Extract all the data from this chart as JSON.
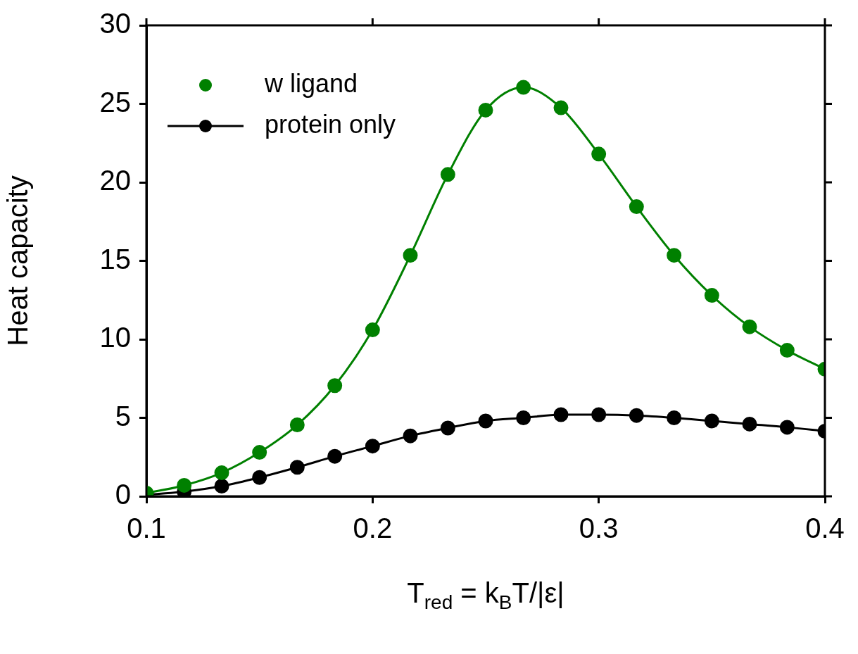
{
  "chart_data": {
    "type": "line",
    "xlabel": "T$_{red}$ = k$_{B}$T/|ε|",
    "ylabel": "Heat capacity",
    "x": [
      0.1,
      0.1167,
      0.1333,
      0.15,
      0.1667,
      0.1833,
      0.2,
      0.2167,
      0.2333,
      0.25,
      0.2667,
      0.2833,
      0.3,
      0.3167,
      0.3333,
      0.35,
      0.3667,
      0.3833,
      0.4
    ],
    "series": [
      {
        "name": "w ligand",
        "type": "scatter",
        "marker": "circle",
        "color": "#008000",
        "values": [
          0.2,
          0.7,
          1.5,
          2.8,
          4.55,
          7.05,
          10.6,
          15.35,
          20.5,
          24.6,
          26.05,
          24.75,
          21.8,
          18.45,
          15.35,
          12.8,
          10.8,
          9.3,
          8.1
        ]
      },
      {
        "type": "line",
        "marker": "none",
        "color": "#008000",
        "values": [
          0.2,
          0.7,
          1.5,
          2.8,
          4.55,
          7.05,
          10.6,
          15.35,
          20.5,
          24.6,
          26.05,
          24.75,
          21.8,
          18.45,
          15.35,
          12.8,
          10.8,
          9.3,
          8.1
        ]
      },
      {
        "name": "protein only",
        "marker": "circle",
        "color": "#000000",
        "values": [
          0.1,
          0.3,
          0.65,
          1.2,
          1.85,
          2.55,
          3.2,
          3.85,
          4.35,
          4.8,
          5.0,
          5.2,
          5.2,
          5.15,
          5.0,
          4.8,
          4.6,
          4.4,
          4.15
        ]
      }
    ],
    "xlim": [
      0.1,
      0.4
    ],
    "xticks": [
      0.1,
      0.2,
      0.3,
      0.4
    ],
    "ylim": [
      0,
      30
    ],
    "yticks": [
      0,
      5,
      10,
      15,
      20,
      25,
      30
    ],
    "grid": false,
    "legend": "top left"
  }
}
